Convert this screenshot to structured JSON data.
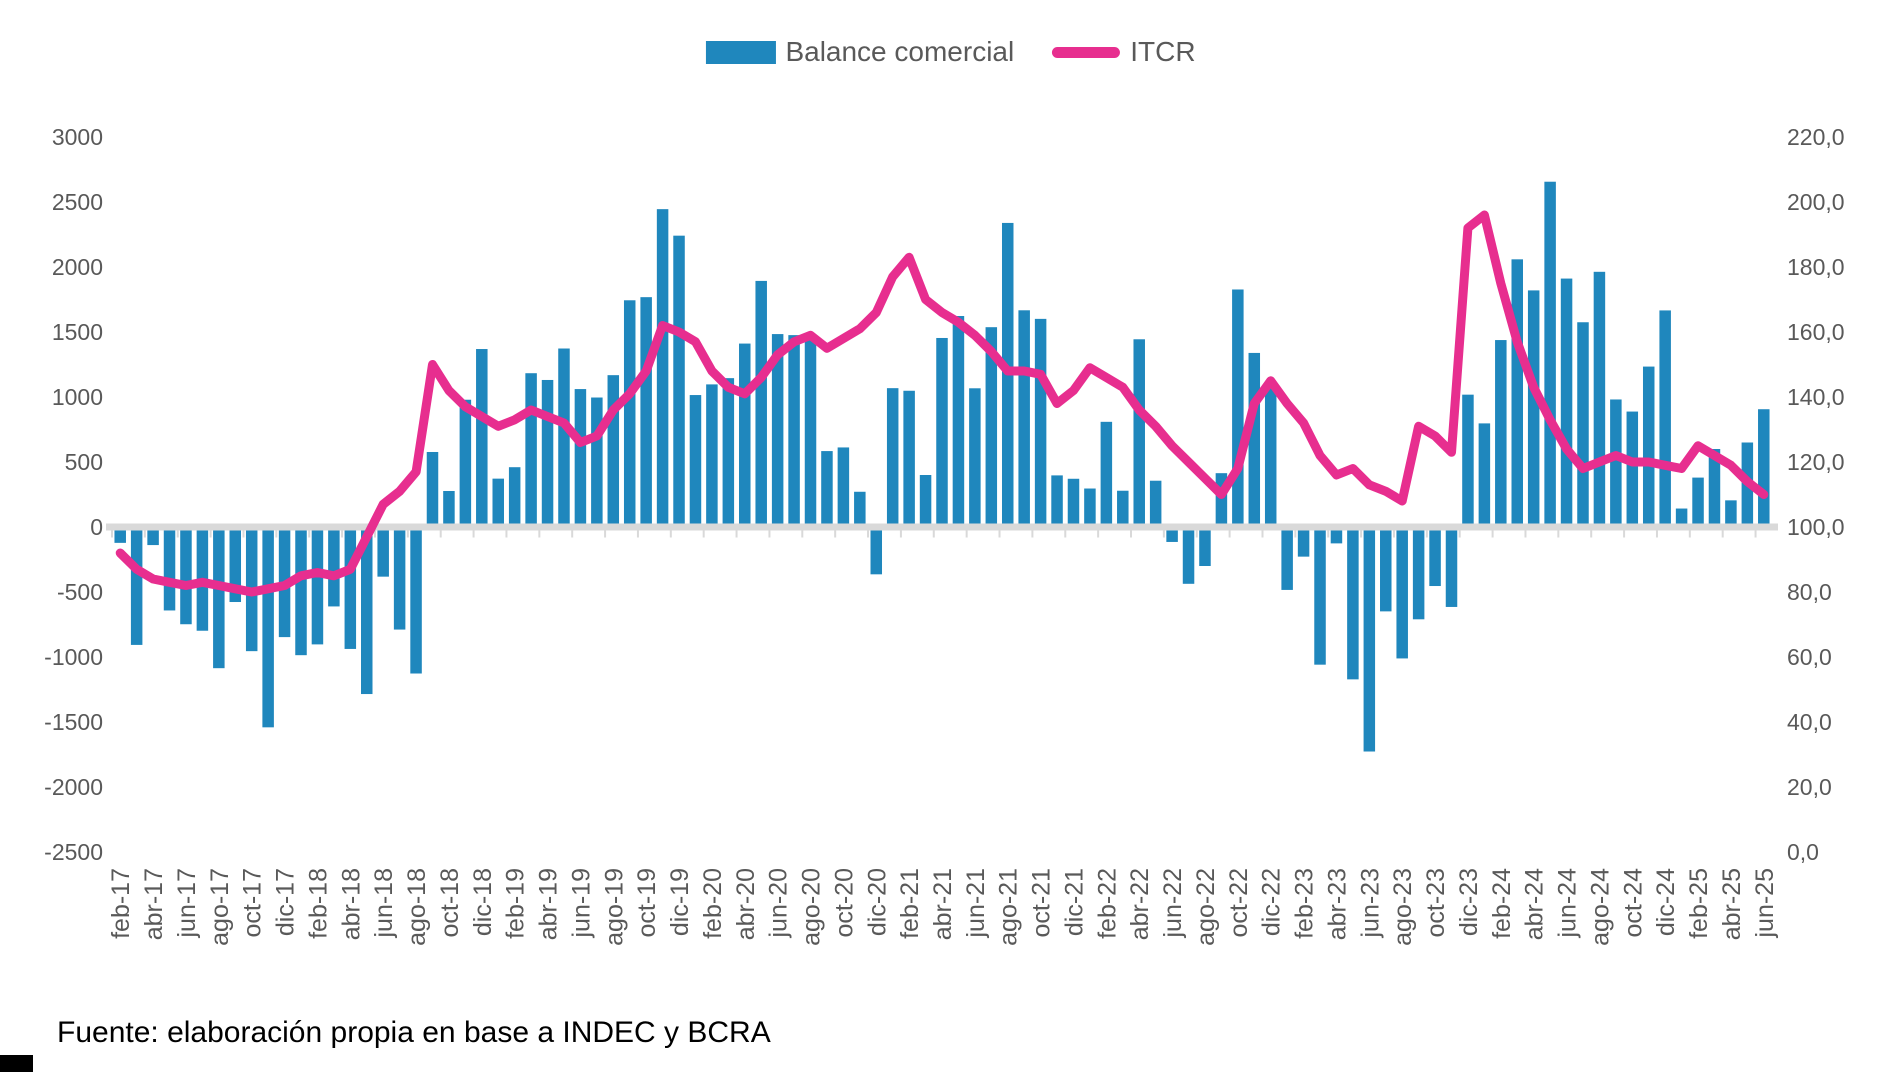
{
  "legend": {
    "bar_label": "Balance comercial",
    "line_label": "ITCR"
  },
  "source_note": "Fuente: elaboración propia en base a INDEC y BCRA",
  "colors": {
    "bar": "#1F87BD",
    "line": "#E72E8F",
    "axis_text": "#595959",
    "zero_band": "#D9D9D9",
    "background": "#FFFFFF"
  },
  "chart_data": {
    "type": "combo",
    "title": "",
    "legend_position": "top-center",
    "grid": "none",
    "x_label_every": 2,
    "left_axis": {
      "min": -2500,
      "max": 3000,
      "step": 500,
      "ticks": [
        "3000",
        "2500",
        "2000",
        "1500",
        "1000",
        "500",
        "0",
        "-500",
        "-1000",
        "-1500",
        "-2000",
        "-2500"
      ]
    },
    "right_axis": {
      "min": 0,
      "max": 220,
      "step": 20,
      "ticks": [
        "220,0",
        "200,0",
        "180,0",
        "160,0",
        "140,0",
        "120,0",
        "100,0",
        "80,0",
        "60,0",
        "40,0",
        "20,0",
        "0,0"
      ]
    },
    "categories": [
      "feb-17",
      "mar-17",
      "abr-17",
      "may-17",
      "jun-17",
      "jul-17",
      "ago-17",
      "sep-17",
      "oct-17",
      "nov-17",
      "dic-17",
      "ene-18",
      "feb-18",
      "mar-18",
      "abr-18",
      "may-18",
      "jun-18",
      "jul-18",
      "ago-18",
      "sep-18",
      "oct-18",
      "nov-18",
      "dic-18",
      "ene-19",
      "feb-19",
      "mar-19",
      "abr-19",
      "may-19",
      "jun-19",
      "jul-19",
      "ago-19",
      "sep-19",
      "oct-19",
      "nov-19",
      "dic-19",
      "ene-20",
      "feb-20",
      "mar-20",
      "abr-20",
      "may-20",
      "jun-20",
      "jul-20",
      "ago-20",
      "sep-20",
      "oct-20",
      "nov-20",
      "dic-20",
      "ene-21",
      "feb-21",
      "mar-21",
      "abr-21",
      "may-21",
      "jun-21",
      "jul-21",
      "ago-21",
      "sep-21",
      "oct-21",
      "nov-21",
      "dic-21",
      "ene-22",
      "feb-22",
      "mar-22",
      "abr-22",
      "may-22",
      "jun-22",
      "jul-22",
      "ago-22",
      "sep-22",
      "oct-22",
      "nov-22",
      "dic-22",
      "ene-23",
      "feb-23",
      "mar-23",
      "abr-23",
      "may-23",
      "jun-23",
      "jul-23",
      "ago-23",
      "sep-23",
      "oct-23",
      "nov-23",
      "dic-23",
      "ene-24",
      "feb-24",
      "mar-24",
      "abr-24",
      "may-24",
      "jun-24",
      "jul-24",
      "ago-24",
      "sep-24",
      "oct-24",
      "nov-24",
      "dic-24",
      "ene-25",
      "feb-25",
      "mar-25",
      "abr-25",
      "may-25",
      "jun-25"
    ],
    "series": [
      {
        "name": "Balance comercial",
        "type": "bar",
        "axis": "left",
        "values": [
          -122,
          -907,
          -139,
          -642,
          -748,
          -798,
          -1086,
          -577,
          -955,
          -1541,
          -847,
          -986,
          -903,
          -611,
          -938,
          -1285,
          -382,
          -789,
          -1127,
          577,
          277,
          979,
          1369,
          372,
          460,
          1183,
          1131,
          1373,
          1061,
          996,
          1168,
          1744,
          1768,
          2445,
          2241,
          1015,
          1097,
          1145,
          1411,
          1893,
          1484,
          1476,
          1436,
          584,
          612,
          271,
          -364,
          1068,
          1048,
          400,
          1454,
          1623,
          1067,
          1537,
          2339,
          1667,
          1601,
          397,
          371,
          296,
          809,
          279,
          1444,
          356,
          -115,
          -437,
          -300,
          414,
          1827,
          1339,
          1103,
          -484,
          -228,
          -1059,
          -126,
          -1172,
          -1727,
          -649,
          -1011,
          -710,
          -454,
          -615,
          1018,
          797,
          1438,
          2059,
          1820,
          2656,
          1911,
          1575,
          1963,
          981,
          888,
          1234,
          1666,
          142,
          380,
          600,
          205,
          650,
          906
        ]
      },
      {
        "name": "ITCR",
        "type": "line",
        "axis": "right",
        "values": [
          92,
          87,
          84,
          83,
          82,
          83,
          82,
          81,
          80,
          81,
          82,
          85,
          86,
          85,
          87,
          97,
          107,
          111,
          117,
          150,
          142,
          137,
          134,
          131,
          133,
          136,
          134,
          132,
          126,
          128,
          136,
          141,
          148,
          162,
          160,
          157,
          148,
          143,
          141,
          146,
          153,
          157,
          159,
          155,
          158,
          161,
          166,
          177,
          183,
          170,
          166,
          163,
          159,
          154,
          148,
          148,
          147,
          138,
          142,
          149,
          146,
          143,
          136,
          131,
          125,
          120,
          115,
          110,
          118,
          138,
          145,
          138,
          132,
          122,
          116,
          118,
          113,
          111,
          108,
          131,
          128,
          123,
          192,
          196,
          175,
          157,
          143,
          133,
          124,
          118,
          120,
          122,
          120,
          120,
          119,
          118,
          125,
          122,
          119,
          114,
          110
        ]
      }
    ]
  }
}
